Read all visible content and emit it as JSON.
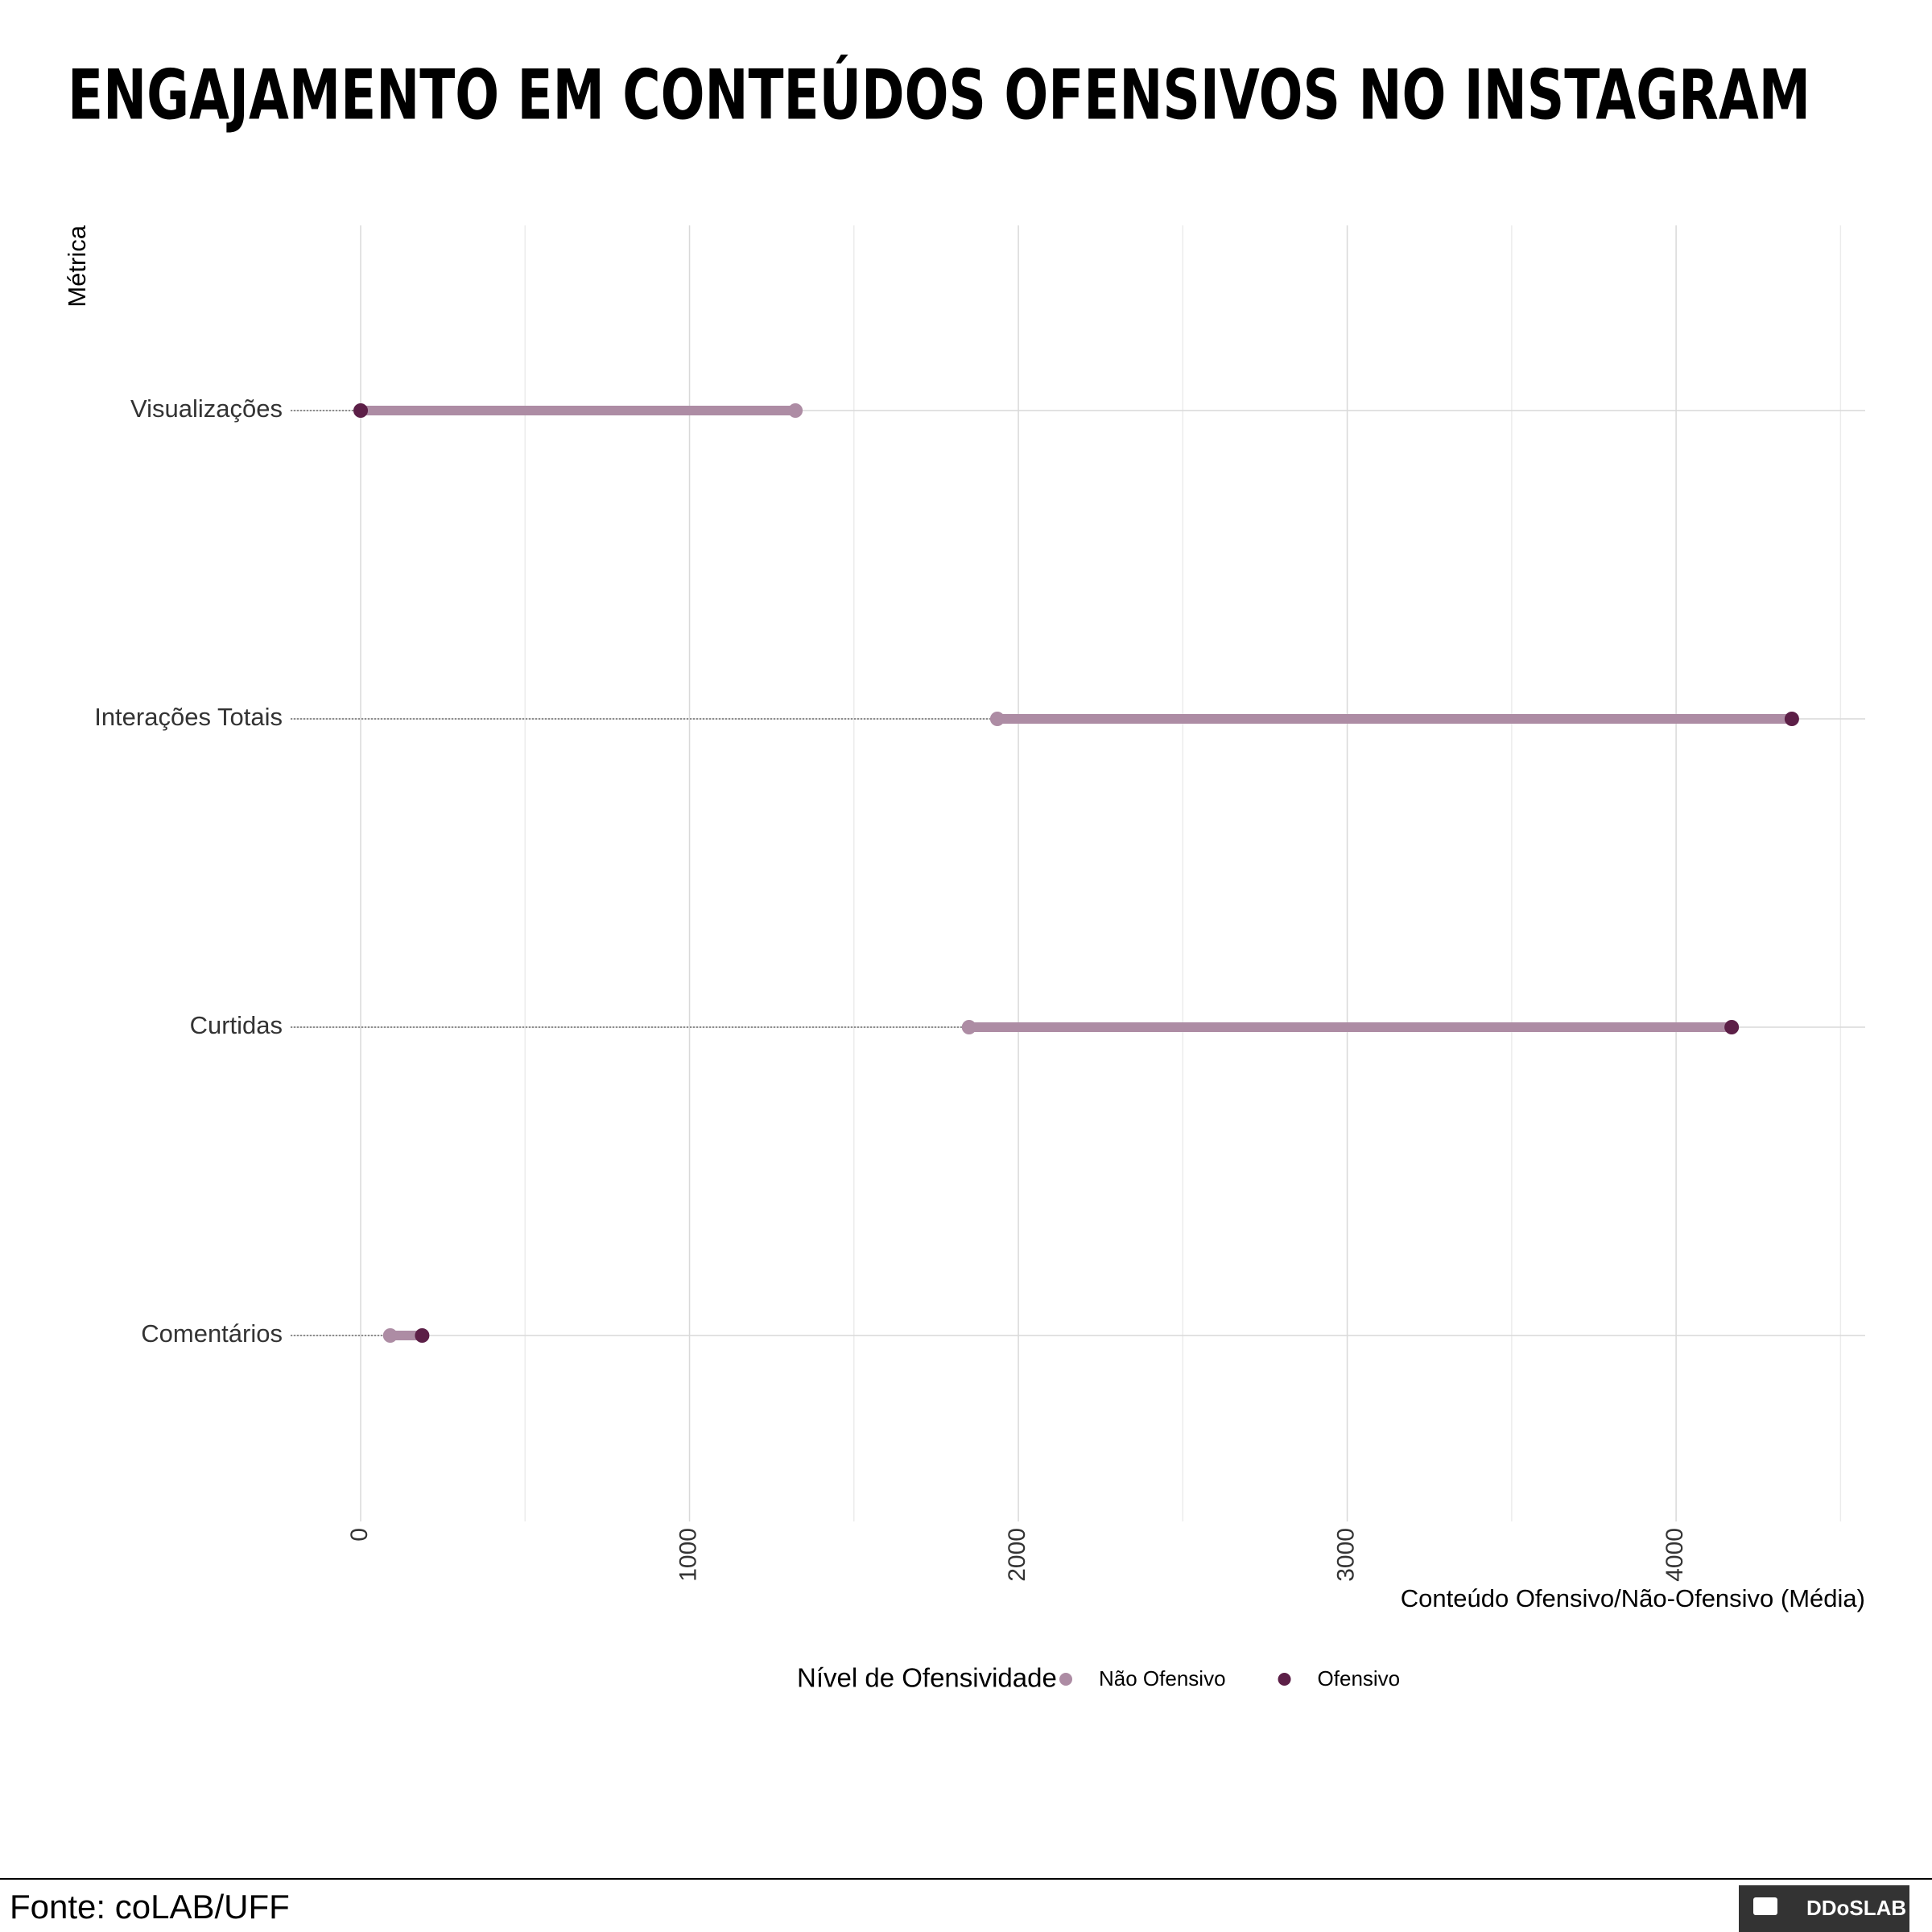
{
  "chart_data": {
    "type": "dumbbell",
    "title": "ENGAJAMENTO EM CONTEÚDOS OFENSIVOS NO INSTAGRAM",
    "x_label": "Conteúdo Ofensivo/Não-Ofensivo (Média)",
    "y_label": "Métrica",
    "categories": [
      "Visualizações",
      "Interações Totais",
      "Curtidas",
      "Comentários"
    ],
    "series": [
      {
        "name": "Não Ofensivo",
        "color": "#ad8ca4",
        "values": [
          1322,
          1936,
          1850,
          90
        ]
      },
      {
        "name": "Ofensivo",
        "color": "#5c1f47",
        "values": [
          0,
          4352,
          4169,
          187
        ]
      }
    ],
    "xlim": [
      -213,
      4575
    ],
    "xticks": [
      0,
      1000,
      2000,
      3000,
      4000
    ],
    "xminorticks": [
      500,
      1500,
      2500,
      3500,
      4500
    ],
    "grid": true,
    "legend_title": "Nível de Ofensividade",
    "legend_position": "bottom",
    "source": "Fonte: coLAB/UFF",
    "logo": "DDoSLAB"
  }
}
